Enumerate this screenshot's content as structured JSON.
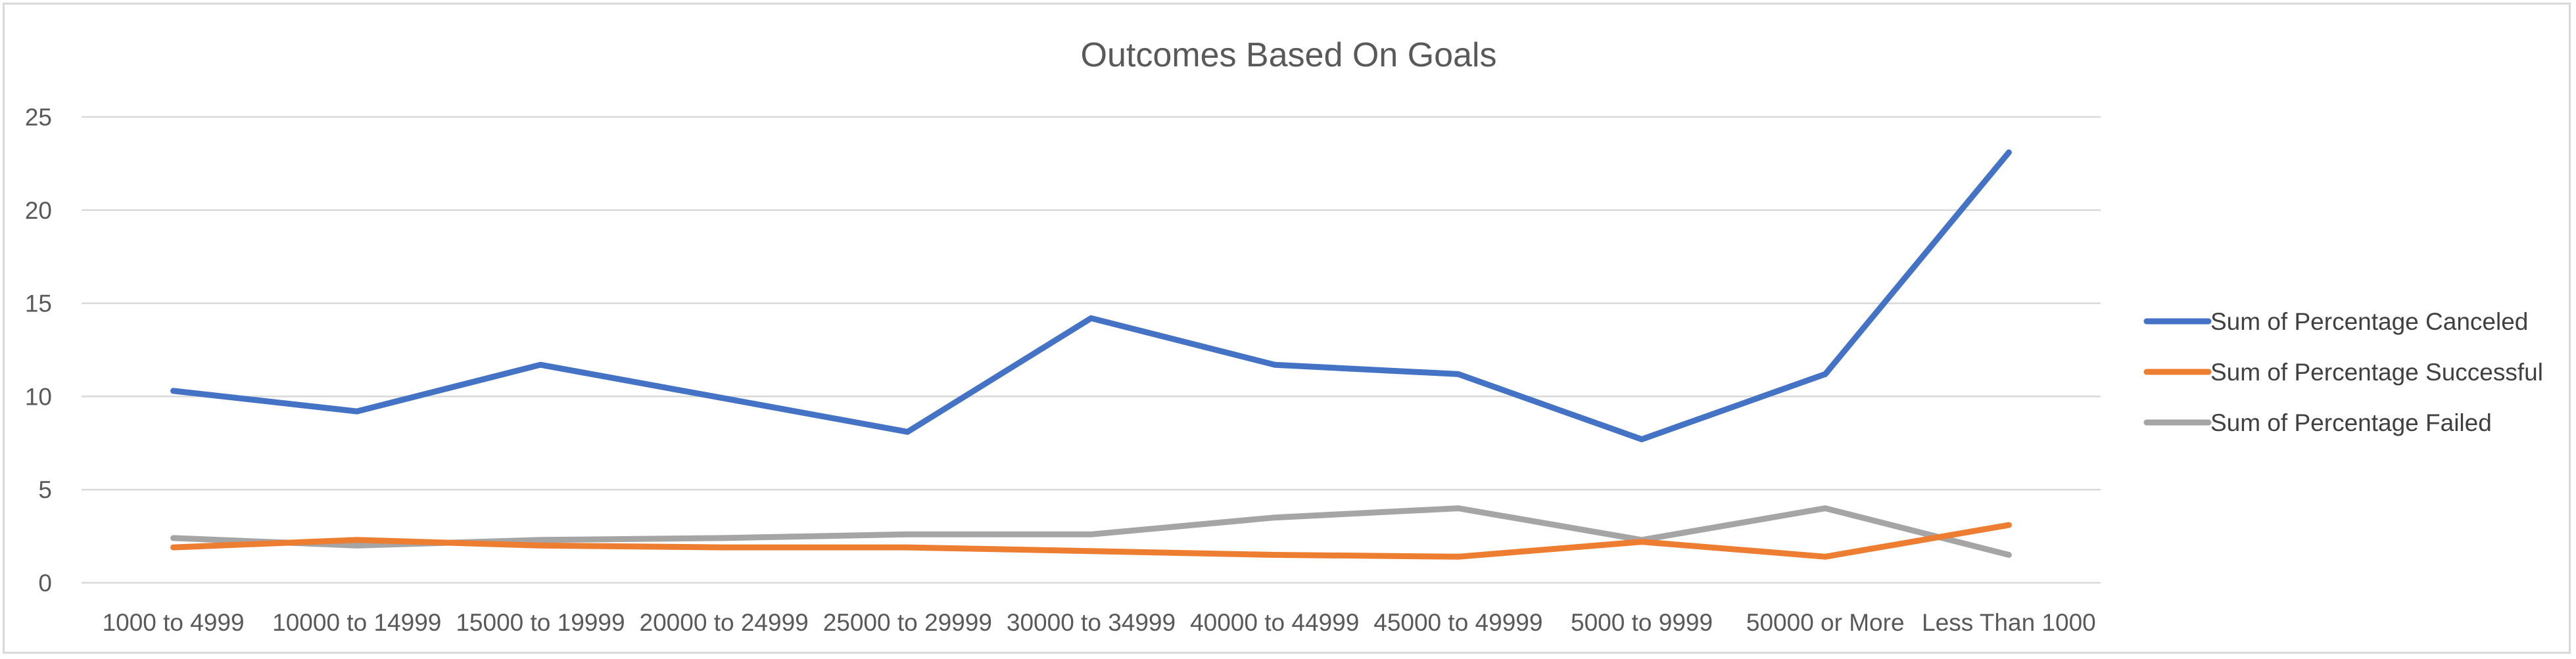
{
  "chart_data": {
    "type": "line",
    "title": "Outcomes Based On Goals",
    "xlabel": "",
    "ylabel": "",
    "categories": [
      "1000 to 4999",
      "10000 to 14999",
      "15000 to 19999",
      "20000 to 24999",
      "25000 to 29999",
      "30000 to 34999",
      "40000 to 44999",
      "45000 to 49999",
      "5000 to 9999",
      "50000 or More",
      "Less Than 1000"
    ],
    "ylim": [
      0,
      25
    ],
    "yticks": [
      0,
      5,
      10,
      15,
      20,
      25
    ],
    "grid": true,
    "legend_position": "right",
    "series": [
      {
        "name": "Sum of Percentage Canceled",
        "color": "#4472c4",
        "values": [
          10.3,
          9.2,
          11.7,
          9.9,
          8.1,
          14.2,
          11.7,
          11.2,
          7.7,
          11.2,
          23.1
        ]
      },
      {
        "name": "Sum of Percentage Successful",
        "color": "#ed7d31",
        "values": [
          1.9,
          2.3,
          2.0,
          1.9,
          1.9,
          1.7,
          1.5,
          1.4,
          2.2,
          1.4,
          3.1
        ]
      },
      {
        "name": "Sum of Percentage Failed",
        "color": "#a5a5a5",
        "values": [
          2.4,
          2.0,
          2.3,
          2.4,
          2.6,
          2.6,
          3.5,
          4.0,
          2.3,
          4.0,
          1.5
        ]
      }
    ]
  }
}
